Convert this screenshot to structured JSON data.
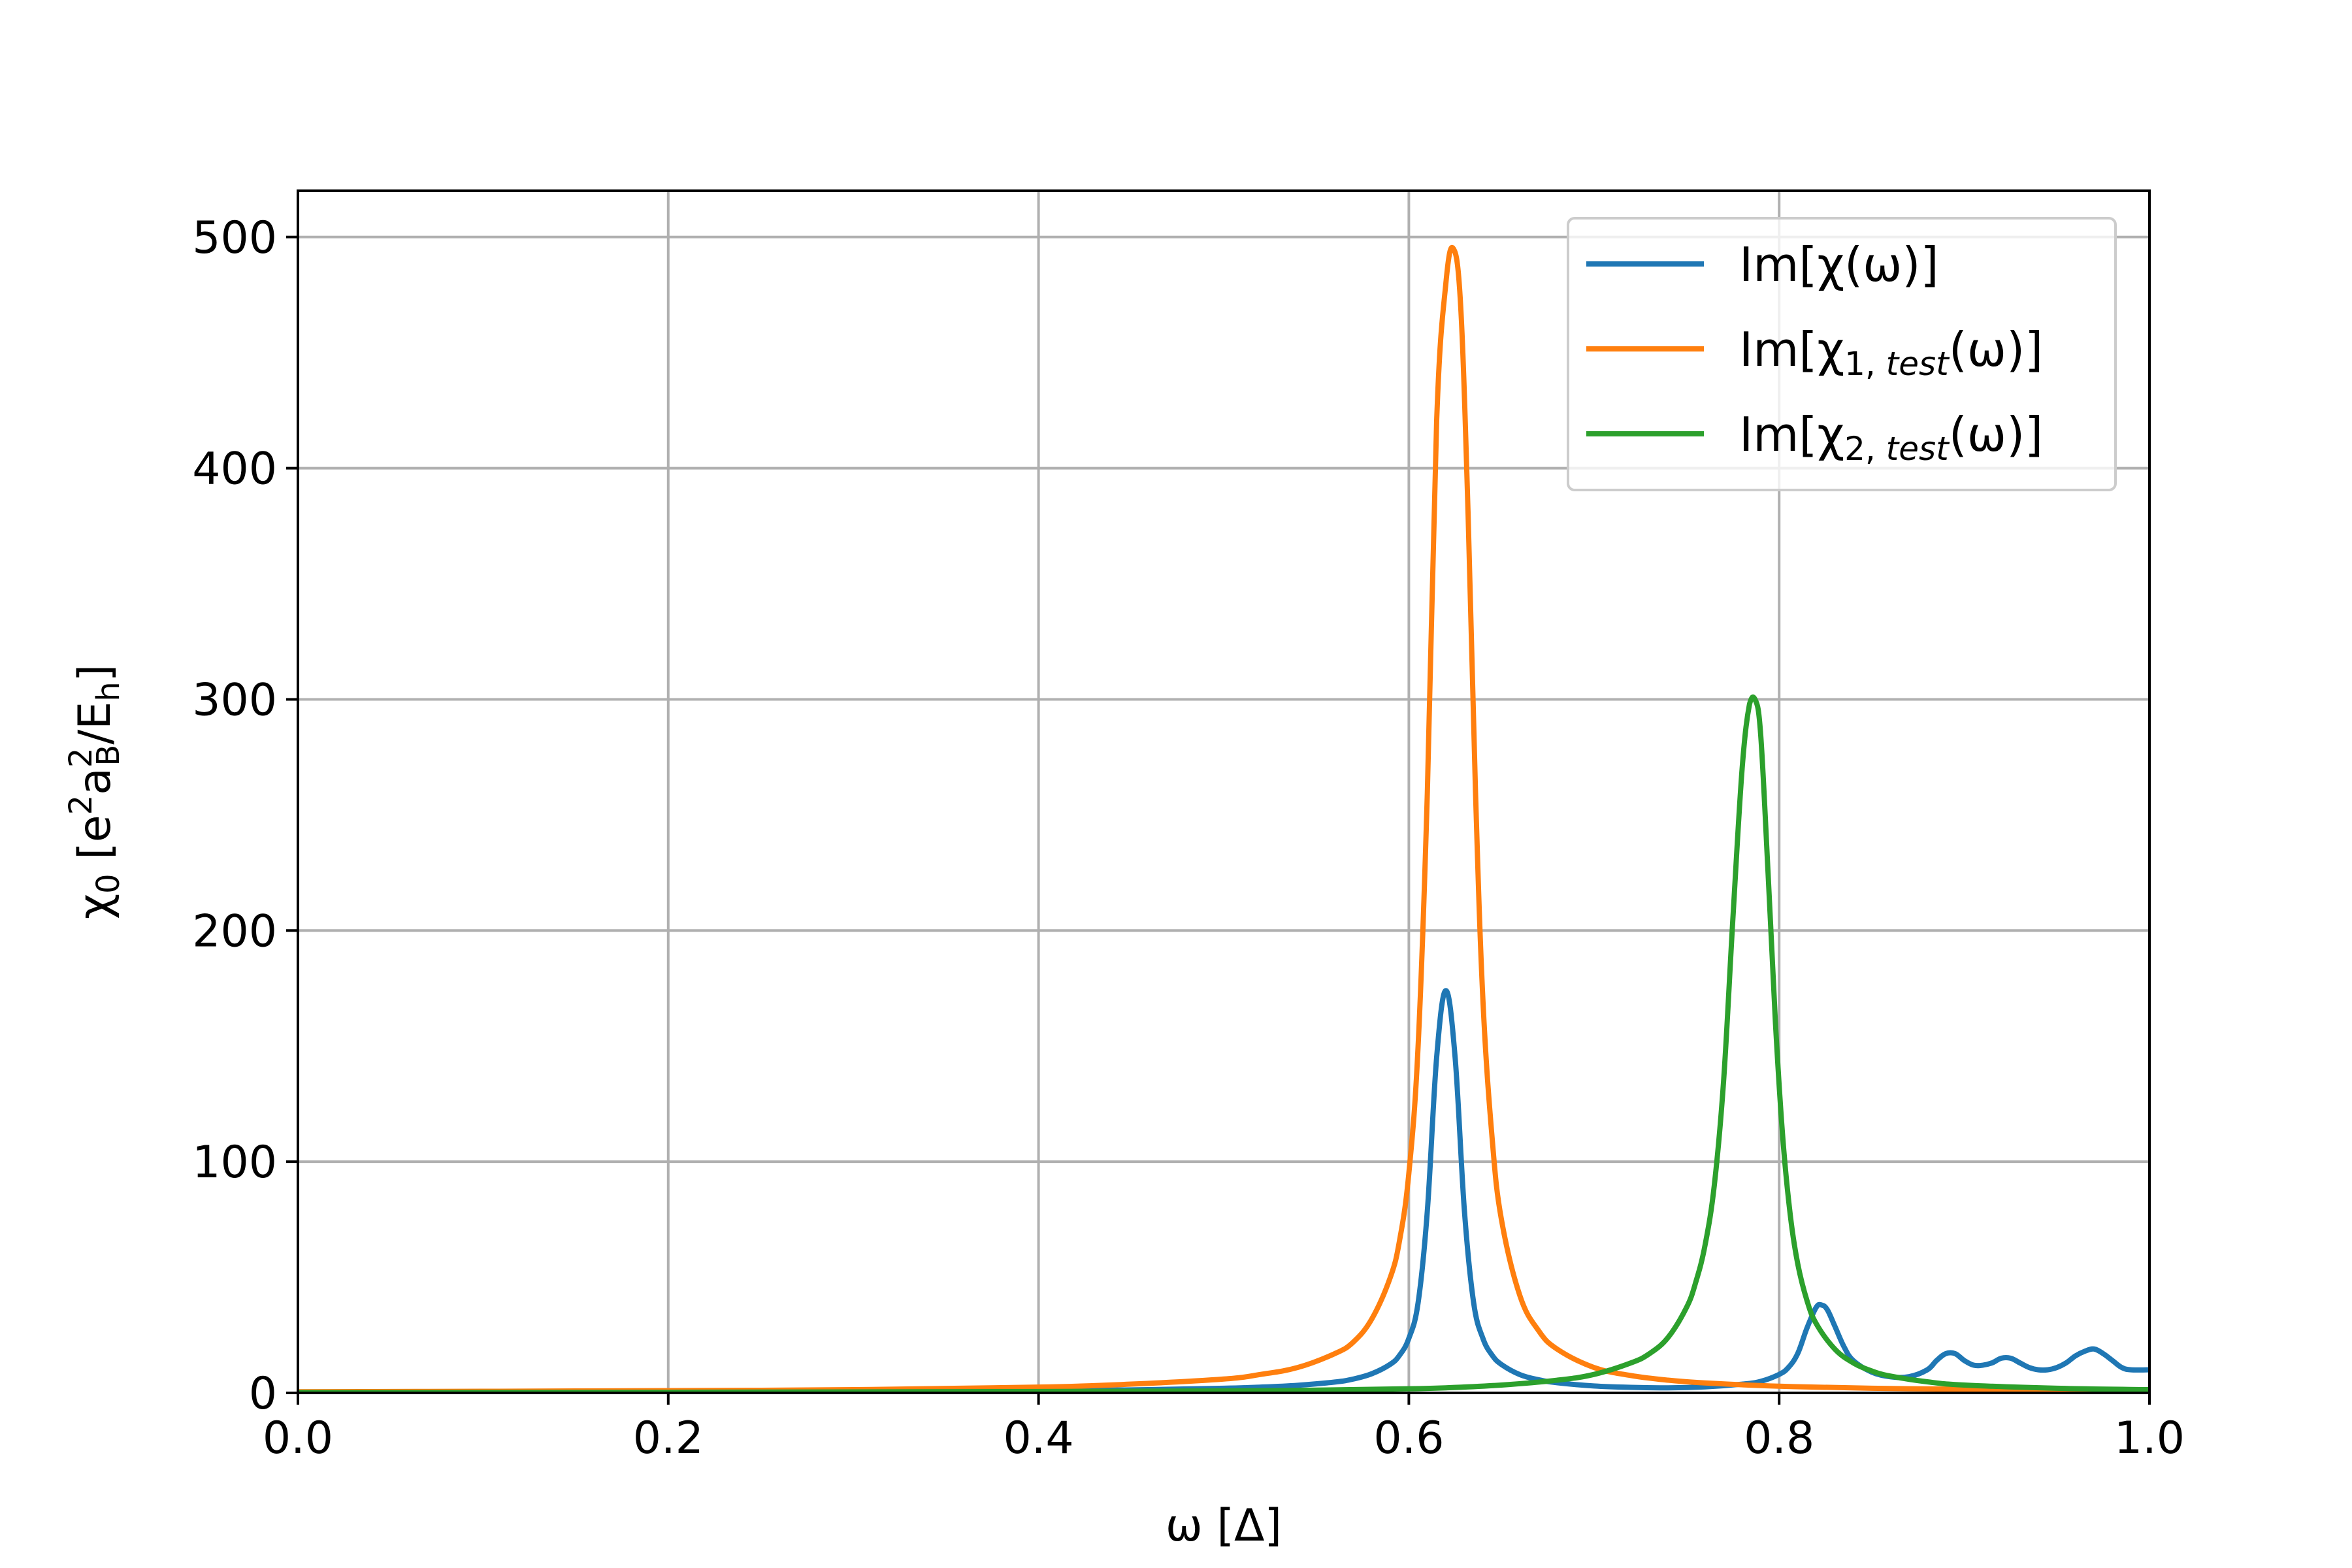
{
  "chart_data": {
    "type": "line",
    "xlabel": "ω [Δ]",
    "ylabel": "χ0 [e²a_B²/E_h]",
    "xlim": [
      0.0,
      1.0
    ],
    "ylim": [
      0,
      520
    ],
    "xticks": [
      0.0,
      0.2,
      0.4,
      0.6,
      0.8,
      1.0
    ],
    "xtick_labels": [
      "0.0",
      "0.2",
      "0.4",
      "0.6",
      "0.8",
      "1.0"
    ],
    "yticks": [
      0,
      100,
      200,
      300,
      400,
      500
    ],
    "ytick_labels": [
      "0",
      "100",
      "200",
      "300",
      "400",
      "500"
    ],
    "grid": true,
    "legend_position": "top-right",
    "series": [
      {
        "name": "Im[χ(ω)]",
        "color": "#1f77b4",
        "x": [
          0.0,
          0.1,
          0.2,
          0.3,
          0.4,
          0.45,
          0.5,
          0.52,
          0.54,
          0.56,
          0.57,
          0.58,
          0.59,
          0.595,
          0.6,
          0.605,
          0.61,
          0.615,
          0.62,
          0.625,
          0.63,
          0.635,
          0.64,
          0.645,
          0.65,
          0.66,
          0.67,
          0.68,
          0.7,
          0.72,
          0.74,
          0.76,
          0.78,
          0.79,
          0.8,
          0.805,
          0.81,
          0.815,
          0.82,
          0.823,
          0.826,
          0.83,
          0.835,
          0.84,
          0.85,
          0.86,
          0.87,
          0.88,
          0.885,
          0.89,
          0.895,
          0.9,
          0.905,
          0.91,
          0.915,
          0.92,
          0.925,
          0.93,
          0.935,
          0.94,
          0.945,
          0.95,
          0.955,
          0.96,
          0.965,
          0.97,
          0.975,
          0.98,
          0.985,
          0.99,
          1.0
        ],
        "y": [
          0.2,
          0.3,
          0.5,
          0.7,
          1.0,
          1.3,
          2.0,
          2.5,
          3.3,
          4.7,
          6.0,
          8.3,
          12.4,
          16.3,
          23.6,
          39.0,
          78.9,
          145.0,
          174.0,
          145.0,
          78.9,
          39.0,
          23.6,
          16.3,
          12.3,
          7.9,
          5.7,
          4.4,
          3.0,
          2.4,
          2.2,
          2.6,
          3.8,
          5.0,
          8.0,
          11.0,
          17.0,
          28.0,
          37.0,
          38.0,
          36.0,
          29.0,
          20.0,
          14.0,
          9.0,
          7.0,
          7.0,
          10.0,
          14.0,
          17.0,
          17.0,
          14.0,
          12.0,
          12.0,
          13.0,
          15.0,
          15.0,
          13.0,
          11.0,
          10.0,
          10.0,
          11.0,
          13.0,
          16.0,
          18.0,
          19.0,
          17.0,
          14.0,
          11.0,
          10.0,
          10.0
        ]
      },
      {
        "name": "Im[χ1, test(ω)]",
        "color": "#ff7f0e",
        "x": [
          0.0,
          0.1,
          0.2,
          0.3,
          0.4,
          0.45,
          0.5,
          0.52,
          0.54,
          0.56,
          0.57,
          0.58,
          0.59,
          0.595,
          0.6,
          0.605,
          0.61,
          0.615,
          0.62,
          0.624,
          0.628,
          0.632,
          0.636,
          0.64,
          0.645,
          0.65,
          0.66,
          0.67,
          0.68,
          0.7,
          0.72,
          0.74,
          0.76,
          0.8,
          0.85,
          0.9,
          0.95,
          1.0
        ],
        "y": [
          0.5,
          0.7,
          1.0,
          1.4,
          2.5,
          3.8,
          6.0,
          8.0,
          11.0,
          17.0,
          22.0,
          32.0,
          50.0,
          66.0,
          95.0,
          150.0,
          260.0,
          420.0,
          480.0,
          495.0,
          470.0,
          380.0,
          260.0,
          170.0,
          110.0,
          75.0,
          42.0,
          27.0,
          19.0,
          11.0,
          7.5,
          5.5,
          4.3,
          2.9,
          2.0,
          1.6,
          1.3,
          1.1
        ]
      },
      {
        "name": "Im[χ2, test(ω)]",
        "color": "#2ca02c",
        "x": [
          0.0,
          0.2,
          0.4,
          0.5,
          0.55,
          0.6,
          0.62,
          0.65,
          0.68,
          0.7,
          0.72,
          0.73,
          0.74,
          0.75,
          0.755,
          0.76,
          0.765,
          0.77,
          0.775,
          0.78,
          0.784,
          0.787,
          0.79,
          0.794,
          0.798,
          0.802,
          0.806,
          0.81,
          0.815,
          0.82,
          0.83,
          0.84,
          0.85,
          0.86,
          0.88,
          0.9,
          0.95,
          1.0
        ],
        "y": [
          0.2,
          0.3,
          0.6,
          0.9,
          1.2,
          1.8,
          2.2,
          3.4,
          5.5,
          8.0,
          13.0,
          17.0,
          24.0,
          37.0,
          48.0,
          64.0,
          90.0,
          135.0,
          205.0,
          270.0,
          298.0,
          300.0,
          285.0,
          225.0,
          160.0,
          110.0,
          77.0,
          56.0,
          40.0,
          30.0,
          19.0,
          13.0,
          9.5,
          7.3,
          4.8,
          3.4,
          2.0,
          1.4
        ]
      }
    ]
  }
}
